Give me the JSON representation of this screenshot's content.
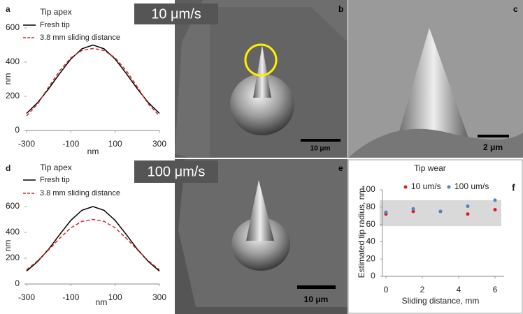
{
  "panel_labels": [
    "a",
    "b",
    "c",
    "d",
    "e",
    "f"
  ],
  "speed_labels": [
    "10 μm/s",
    "100 μm/s"
  ],
  "scale_bars": [
    "10 μm",
    "2 μm",
    "10 μm"
  ],
  "chart_data": [
    {
      "type": "line",
      "title": "Tip apex",
      "x_label": "nm",
      "y_label": "nm",
      "x": [
        -300,
        -250,
        -200,
        -150,
        -100,
        -50,
        0,
        50,
        100,
        150,
        200,
        250,
        300
      ],
      "xlim": [
        -300,
        300
      ],
      "xticks": [
        -300,
        -100,
        100,
        300
      ],
      "ylim": [
        0,
        600
      ],
      "yticks": [
        0,
        200,
        400,
        600
      ],
      "series": [
        {
          "name": "Fresh tip",
          "color": "#000000",
          "dash": "solid",
          "values": [
            100,
            163,
            244,
            334,
            418,
            478,
            500,
            478,
            418,
            334,
            244,
            163,
            100
          ]
        },
        {
          "name": "3.8 mm sliding distance",
          "color": "#d62728",
          "dash": "dashed",
          "values": [
            85,
            155,
            255,
            350,
            425,
            468,
            480,
            468,
            425,
            350,
            255,
            155,
            85
          ]
        }
      ]
    },
    {
      "type": "line",
      "title": "Tip apex",
      "x_label": "nm",
      "y_label": "nm",
      "x": [
        -300,
        -250,
        -200,
        -150,
        -100,
        -50,
        0,
        50,
        100,
        150,
        200,
        250,
        300
      ],
      "xlim": [
        -300,
        300
      ],
      "xticks": [
        -300,
        -100,
        100,
        300
      ],
      "ylim": [
        0,
        600
      ],
      "yticks": [
        0,
        200,
        400,
        600
      ],
      "series": [
        {
          "name": "Fresh tip",
          "color": "#000000",
          "dash": "solid",
          "values": [
            100,
            174,
            270,
            384,
            493,
            571,
            600,
            571,
            493,
            384,
            270,
            174,
            100
          ]
        },
        {
          "name": "3.8 mm sliding distance",
          "color": "#d62728",
          "dash": "dashed",
          "values": [
            110,
            180,
            265,
            355,
            435,
            485,
            500,
            485,
            435,
            355,
            265,
            180,
            110
          ]
        }
      ]
    },
    {
      "type": "scatter",
      "title": "Tip wear",
      "x_label": "Sliding distance, mm",
      "y_label": "Estimated tip radius, nm",
      "x": [
        0,
        1.5,
        3,
        4.5,
        6
      ],
      "xlim": [
        -0.2,
        6.5
      ],
      "xticks": [
        0,
        2,
        4,
        6
      ],
      "ylim": [
        0,
        100
      ],
      "yticks": [
        0,
        20,
        40,
        60,
        80,
        100
      ],
      "band": [
        58,
        88
      ],
      "band_color": "#d9d9d9",
      "series": [
        {
          "name": "10 um/s",
          "color": "#e41a1c",
          "values": [
            72,
            75,
            75,
            72,
            77
          ]
        },
        {
          "name": "100 um/s",
          "color": "#4a86c8",
          "values": [
            74,
            78,
            75,
            81,
            88
          ]
        }
      ]
    }
  ]
}
